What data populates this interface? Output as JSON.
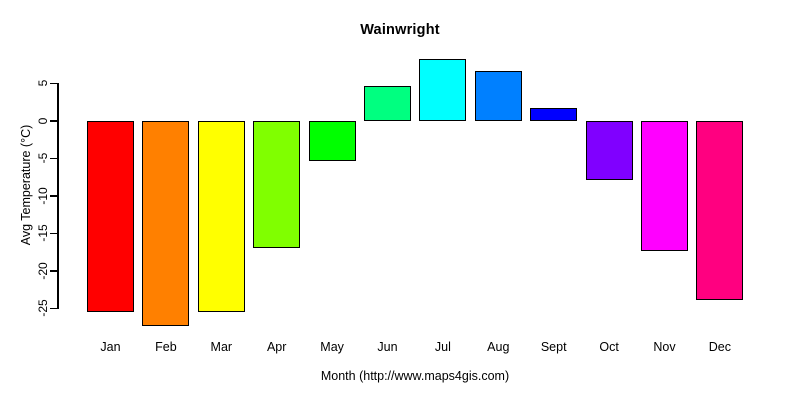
{
  "chart_data": {
    "type": "bar",
    "title": "Wainwright",
    "xlabel": "Month (http://www.maps4gis.com)",
    "ylabel": "Avg Temperature (°C)",
    "categories": [
      "Jan",
      "Feb",
      "Mar",
      "Apr",
      "May",
      "Jun",
      "Jul",
      "Aug",
      "Sept",
      "Oct",
      "Nov",
      "Dec"
    ],
    "values": [
      -25.5,
      -27.3,
      -25.5,
      -17.0,
      -5.3,
      4.7,
      8.2,
      6.6,
      1.7,
      -7.9,
      -17.4,
      -23.9
    ],
    "bar_colors": [
      "#FF0000",
      "#FF8000",
      "#FFFF00",
      "#80FF00",
      "#00FF00",
      "#00FF80",
      "#00FFFF",
      "#0080FF",
      "#0000FF",
      "#8000FF",
      "#FF00FF",
      "#FF0080"
    ],
    "bar_border_color": "#000000",
    "yticks": [
      5,
      0,
      -5,
      -10,
      -15,
      -20,
      -25
    ],
    "ylim": [
      -28.5,
      8.8
    ],
    "grid": false,
    "legend_position": "none"
  }
}
